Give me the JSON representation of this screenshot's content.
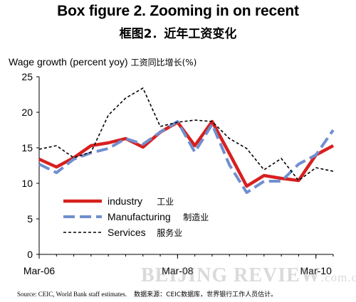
{
  "title": "Box figure 2. Zooming in on recent",
  "subtitle": "框图2．近年工资变化",
  "y_axis_label": "Wage growth (percent yoy)",
  "y_axis_label_cn": "工资同比增长(%)",
  "footer_source": "Source: CEIC, World Bank staff estimates.",
  "footer_source_cn": "数据来源：CEIC数据库，世界银行工作人员估计。",
  "watermark": "BEIJING REVIEW",
  "watermark_domain": ".com.cn",
  "chart_data": {
    "type": "line",
    "x": [
      "2006-03",
      "2006-06",
      "2006-09",
      "2006-12",
      "2007-03",
      "2007-06",
      "2007-09",
      "2007-12",
      "2008-03",
      "2008-06",
      "2008-09",
      "2008-12",
      "2009-03",
      "2009-06",
      "2009-09",
      "2009-12",
      "2010-03",
      "2010-06"
    ],
    "x_ticks": [
      "Mar-06",
      "Mar-08",
      "Mar-10"
    ],
    "y_ticks": [
      0,
      5,
      10,
      15,
      20,
      25
    ],
    "ylim": [
      0,
      25
    ],
    "grid": false,
    "legend_position": "lower-left",
    "series": [
      {
        "name": "industry",
        "name_cn": "工业",
        "color": "#d7201f",
        "style": "solid",
        "values": [
          13.4,
          12.3,
          13.6,
          15.3,
          15.7,
          16.3,
          15.1,
          17.2,
          18.6,
          15.3,
          18.7,
          14.2,
          9.6,
          11.1,
          10.7,
          10.4,
          14.0,
          15.3
        ]
      },
      {
        "name": "Manufacturing",
        "name_cn": "制造业",
        "color": "#6f8fcf",
        "style": "dashed",
        "values": [
          12.7,
          11.5,
          13.4,
          14.3,
          14.9,
          16.3,
          15.5,
          17.2,
          18.7,
          14.4,
          18.3,
          12.6,
          8.7,
          10.3,
          10.3,
          12.7,
          14.0,
          17.5
        ]
      },
      {
        "name": "Services",
        "name_cn": "服务业",
        "color": "#000000",
        "style": "dotted",
        "values": [
          14.8,
          15.3,
          13.6,
          14.4,
          19.6,
          22.0,
          23.4,
          18.0,
          18.6,
          18.9,
          18.7,
          16.3,
          14.9,
          11.9,
          13.5,
          10.4,
          12.2,
          11.7
        ]
      }
    ]
  }
}
